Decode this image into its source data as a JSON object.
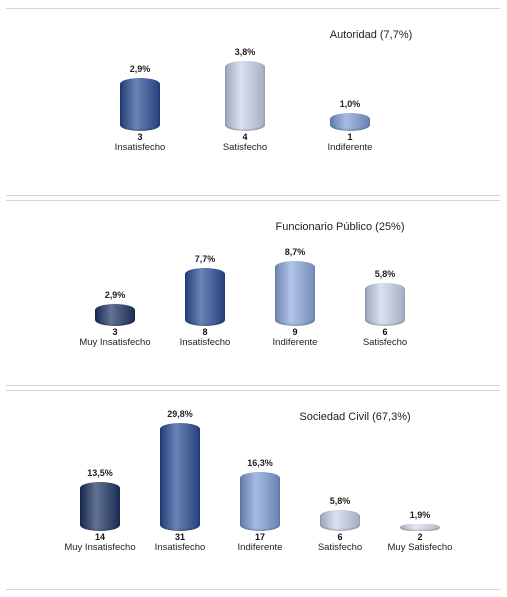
{
  "chart_data": [
    {
      "type": "bar",
      "title": "Autoridad (7,7%)",
      "categories": [
        "Insatisfecho",
        "Satisfecho",
        "Indiferente"
      ],
      "values": [
        2.9,
        3.8,
        1.0
      ],
      "value_labels": [
        "2,9%",
        "3,8%",
        "1,0%"
      ],
      "counts": [
        3,
        4,
        1
      ],
      "colors": [
        "#2b4f98",
        "#c9d5ec",
        "#7f9fd8"
      ]
    },
    {
      "type": "bar",
      "title": "Funcionario Público (25%)",
      "categories": [
        "Muy Insatisfecho",
        "Insatisfecho",
        "Indiferente",
        "Satisfecho"
      ],
      "values": [
        2.9,
        7.7,
        8.7,
        5.8
      ],
      "value_labels": [
        "2,9%",
        "7,7%",
        "8,7%",
        "5,8%"
      ],
      "counts": [
        3,
        8,
        9,
        6
      ],
      "colors": [
        "#1f3566",
        "#2b4f98",
        "#8fabe0",
        "#c9d5ec"
      ]
    },
    {
      "type": "bar",
      "title": "Sociedad Civil (67,3%)",
      "categories": [
        "Muy Insatisfecho",
        "Insatisfecho",
        "Indiferente",
        "Satisfecho",
        "Muy Satisfecho"
      ],
      "values": [
        13.5,
        29.8,
        16.3,
        5.8,
        1.9
      ],
      "value_labels": [
        "13,5%",
        "29,8%",
        "16,3%",
        "5,8%",
        "1,9%"
      ],
      "counts": [
        14,
        31,
        17,
        6,
        2
      ],
      "colors": [
        "#1f3566",
        "#2b4f98",
        "#7f9fd8",
        "#c9d5ec",
        "#dbe3f3"
      ]
    }
  ]
}
